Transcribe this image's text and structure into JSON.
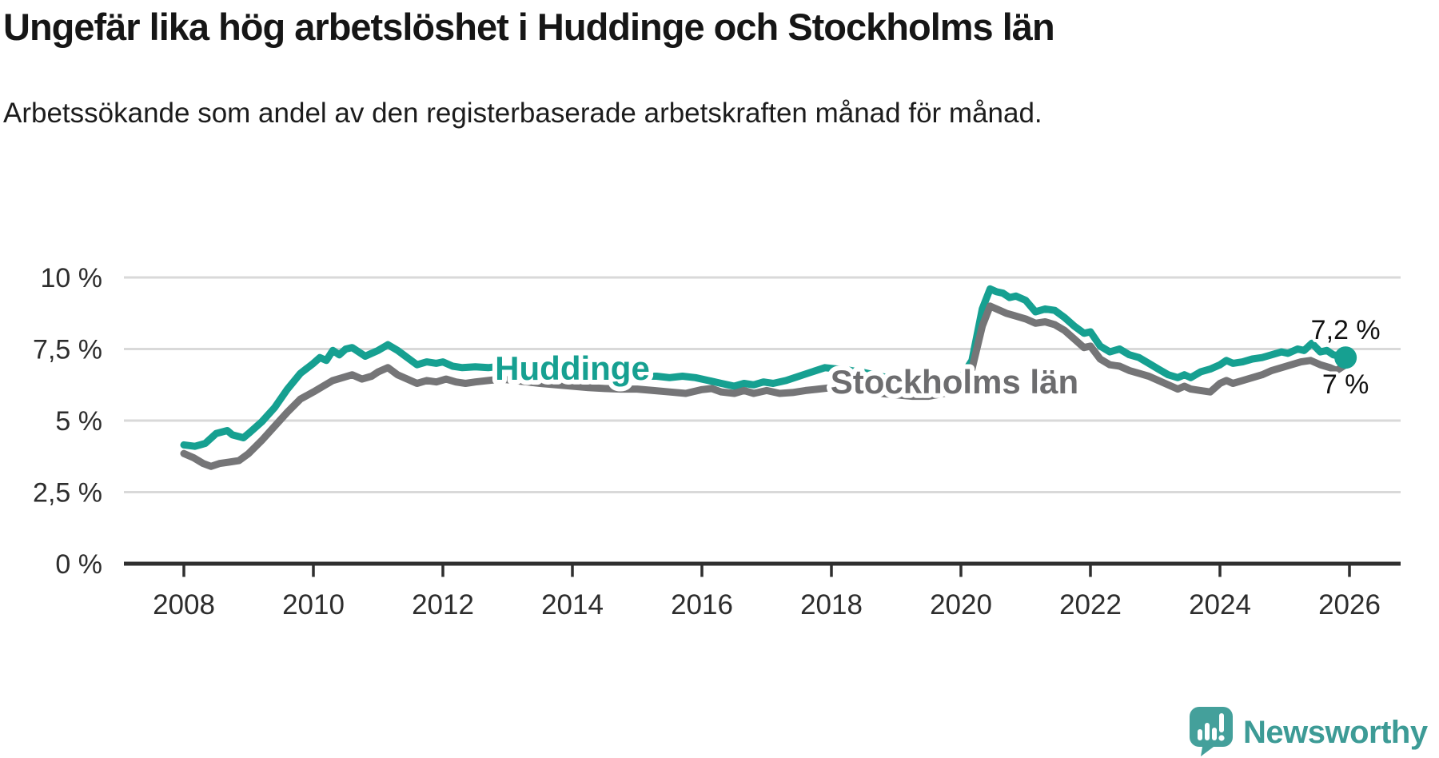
{
  "header": {
    "title": "Ungefär lika hög arbetslöshet i Huddinge och Stockholms län",
    "subtitle": "Arbetssökande som andel av den registerbaserade arbetskraften månad för månad."
  },
  "colors": {
    "huddinge": "#16a091",
    "stockholm": "#757577",
    "stockholm_label": "#6d6d6f",
    "grid": "#d9d9d9",
    "axis": "#2f2f2f",
    "tick_text": "#2d2d2d",
    "end_label_text": "#111111",
    "brand": "#3d9b96",
    "background": "#ffffff"
  },
  "chart_data": {
    "type": "line",
    "title": "Ungefär lika hög arbetslöshet i Huddinge och Stockholms län",
    "subtitle": "Arbetssökande som andel av den registerbaserade arbetskraften månad för månad.",
    "xlabel": "",
    "ylabel": "",
    "ylim": [
      0,
      10
    ],
    "xlim": [
      2007.1,
      2026.8
    ],
    "grid": "horizontal",
    "legend_position": "inline-labels",
    "yticks": [
      {
        "value": 0,
        "label": "0 %"
      },
      {
        "value": 2.5,
        "label": "2,5 %"
      },
      {
        "value": 5,
        "label": "5 %"
      },
      {
        "value": 7.5,
        "label": "7,5 %"
      },
      {
        "value": 10,
        "label": "10 %"
      }
    ],
    "xticks": [
      {
        "value": 2008,
        "label": "2008"
      },
      {
        "value": 2010,
        "label": "2010"
      },
      {
        "value": 2012,
        "label": "2012"
      },
      {
        "value": 2014,
        "label": "2014"
      },
      {
        "value": 2016,
        "label": "2016"
      },
      {
        "value": 2018,
        "label": "2018"
      },
      {
        "value": 2020,
        "label": "2020"
      },
      {
        "value": 2022,
        "label": "2022"
      },
      {
        "value": 2024,
        "label": "2024"
      },
      {
        "value": 2026,
        "label": "2026"
      }
    ],
    "series": [
      {
        "name": "Huddinge",
        "color_key": "huddinge",
        "end_label": "7,2 %",
        "end_dot": true,
        "points": [
          [
            2008.0,
            4.15
          ],
          [
            2008.17,
            4.1
          ],
          [
            2008.33,
            4.2
          ],
          [
            2008.5,
            4.55
          ],
          [
            2008.67,
            4.65
          ],
          [
            2008.75,
            4.5
          ],
          [
            2008.92,
            4.4
          ],
          [
            2009.0,
            4.55
          ],
          [
            2009.2,
            4.95
          ],
          [
            2009.4,
            5.45
          ],
          [
            2009.6,
            6.1
          ],
          [
            2009.8,
            6.65
          ],
          [
            2010.0,
            7.0
          ],
          [
            2010.1,
            7.2
          ],
          [
            2010.2,
            7.1
          ],
          [
            2010.3,
            7.45
          ],
          [
            2010.4,
            7.3
          ],
          [
            2010.5,
            7.5
          ],
          [
            2010.6,
            7.55
          ],
          [
            2010.7,
            7.4
          ],
          [
            2010.8,
            7.25
          ],
          [
            2010.9,
            7.35
          ],
          [
            2011.0,
            7.45
          ],
          [
            2011.15,
            7.65
          ],
          [
            2011.3,
            7.45
          ],
          [
            2011.45,
            7.2
          ],
          [
            2011.6,
            6.95
          ],
          [
            2011.75,
            7.05
          ],
          [
            2011.9,
            7.0
          ],
          [
            2012.0,
            7.05
          ],
          [
            2012.15,
            6.9
          ],
          [
            2012.3,
            6.85
          ],
          [
            2012.5,
            6.88
          ],
          [
            2012.7,
            6.85
          ],
          [
            2012.9,
            6.9
          ],
          [
            2013.1,
            6.85
          ],
          [
            2013.3,
            6.78
          ],
          [
            2013.5,
            6.72
          ],
          [
            2013.75,
            6.68
          ],
          [
            2014.0,
            6.65
          ],
          [
            2014.25,
            6.6
          ],
          [
            2014.5,
            6.58
          ],
          [
            2014.75,
            6.55
          ],
          [
            2015.0,
            6.55
          ],
          [
            2015.3,
            6.55
          ],
          [
            2015.5,
            6.5
          ],
          [
            2015.7,
            6.55
          ],
          [
            2015.9,
            6.5
          ],
          [
            2016.1,
            6.4
          ],
          [
            2016.3,
            6.3
          ],
          [
            2016.5,
            6.2
          ],
          [
            2016.65,
            6.3
          ],
          [
            2016.8,
            6.25
          ],
          [
            2016.95,
            6.35
          ],
          [
            2017.1,
            6.3
          ],
          [
            2017.3,
            6.4
          ],
          [
            2017.5,
            6.55
          ],
          [
            2017.7,
            6.7
          ],
          [
            2017.9,
            6.85
          ],
          [
            2018.1,
            6.8
          ],
          [
            2018.3,
            6.75
          ],
          [
            2018.5,
            6.68
          ],
          [
            2018.75,
            6.55
          ],
          [
            2019.0,
            6.45
          ],
          [
            2019.25,
            6.35
          ],
          [
            2019.5,
            6.28
          ],
          [
            2019.75,
            6.38
          ],
          [
            2020.0,
            6.5
          ],
          [
            2020.17,
            7.1
          ],
          [
            2020.33,
            8.9
          ],
          [
            2020.45,
            9.6
          ],
          [
            2020.55,
            9.5
          ],
          [
            2020.65,
            9.45
          ],
          [
            2020.75,
            9.3
          ],
          [
            2020.85,
            9.35
          ],
          [
            2021.0,
            9.2
          ],
          [
            2021.15,
            8.8
          ],
          [
            2021.3,
            8.9
          ],
          [
            2021.45,
            8.85
          ],
          [
            2021.6,
            8.6
          ],
          [
            2021.75,
            8.3
          ],
          [
            2021.9,
            8.05
          ],
          [
            2022.0,
            8.1
          ],
          [
            2022.15,
            7.6
          ],
          [
            2022.3,
            7.4
          ],
          [
            2022.45,
            7.5
          ],
          [
            2022.6,
            7.3
          ],
          [
            2022.75,
            7.2
          ],
          [
            2022.9,
            7.0
          ],
          [
            2023.05,
            6.8
          ],
          [
            2023.2,
            6.6
          ],
          [
            2023.35,
            6.5
          ],
          [
            2023.45,
            6.6
          ],
          [
            2023.55,
            6.5
          ],
          [
            2023.7,
            6.7
          ],
          [
            2023.85,
            6.8
          ],
          [
            2024.0,
            6.95
          ],
          [
            2024.1,
            7.1
          ],
          [
            2024.2,
            7.0
          ],
          [
            2024.35,
            7.05
          ],
          [
            2024.5,
            7.15
          ],
          [
            2024.65,
            7.2
          ],
          [
            2024.8,
            7.3
          ],
          [
            2024.95,
            7.4
          ],
          [
            2025.05,
            7.35
          ],
          [
            2025.2,
            7.5
          ],
          [
            2025.3,
            7.45
          ],
          [
            2025.42,
            7.7
          ],
          [
            2025.55,
            7.4
          ],
          [
            2025.65,
            7.45
          ],
          [
            2025.75,
            7.3
          ],
          [
            2025.85,
            7.25
          ],
          [
            2025.94,
            7.2
          ]
        ]
      },
      {
        "name": "Stockholms län",
        "color_key": "stockholm",
        "end_label": "7 %",
        "end_dot": false,
        "points": [
          [
            2008.0,
            3.85
          ],
          [
            2008.15,
            3.7
          ],
          [
            2008.3,
            3.5
          ],
          [
            2008.42,
            3.4
          ],
          [
            2008.55,
            3.5
          ],
          [
            2008.7,
            3.55
          ],
          [
            2008.85,
            3.6
          ],
          [
            2009.0,
            3.85
          ],
          [
            2009.2,
            4.3
          ],
          [
            2009.4,
            4.8
          ],
          [
            2009.6,
            5.3
          ],
          [
            2009.8,
            5.75
          ],
          [
            2010.0,
            6.0
          ],
          [
            2010.15,
            6.2
          ],
          [
            2010.3,
            6.4
          ],
          [
            2010.45,
            6.5
          ],
          [
            2010.6,
            6.6
          ],
          [
            2010.75,
            6.45
          ],
          [
            2010.9,
            6.55
          ],
          [
            2011.0,
            6.7
          ],
          [
            2011.15,
            6.85
          ],
          [
            2011.3,
            6.6
          ],
          [
            2011.45,
            6.45
          ],
          [
            2011.6,
            6.3
          ],
          [
            2011.75,
            6.4
          ],
          [
            2011.9,
            6.35
          ],
          [
            2012.05,
            6.45
          ],
          [
            2012.2,
            6.35
          ],
          [
            2012.35,
            6.3
          ],
          [
            2012.5,
            6.35
          ],
          [
            2012.7,
            6.4
          ],
          [
            2012.9,
            6.45
          ],
          [
            2013.1,
            6.4
          ],
          [
            2013.3,
            6.35
          ],
          [
            2013.5,
            6.3
          ],
          [
            2013.75,
            6.25
          ],
          [
            2014.0,
            6.2
          ],
          [
            2014.25,
            6.15
          ],
          [
            2014.5,
            6.12
          ],
          [
            2014.75,
            6.1
          ],
          [
            2015.0,
            6.1
          ],
          [
            2015.25,
            6.05
          ],
          [
            2015.5,
            6.0
          ],
          [
            2015.75,
            5.95
          ],
          [
            2016.0,
            6.08
          ],
          [
            2016.15,
            6.12
          ],
          [
            2016.3,
            6.0
          ],
          [
            2016.5,
            5.95
          ],
          [
            2016.65,
            6.05
          ],
          [
            2016.8,
            5.95
          ],
          [
            2017.0,
            6.05
          ],
          [
            2017.2,
            5.95
          ],
          [
            2017.4,
            5.98
          ],
          [
            2017.6,
            6.05
          ],
          [
            2017.8,
            6.1
          ],
          [
            2018.0,
            6.15
          ],
          [
            2018.25,
            6.1
          ],
          [
            2018.5,
            6.05
          ],
          [
            2018.75,
            5.95
          ],
          [
            2019.0,
            5.9
          ],
          [
            2019.25,
            5.85
          ],
          [
            2019.5,
            5.85
          ],
          [
            2019.75,
            5.95
          ],
          [
            2020.0,
            6.1
          ],
          [
            2020.17,
            6.8
          ],
          [
            2020.33,
            8.3
          ],
          [
            2020.45,
            9.0
          ],
          [
            2020.55,
            8.9
          ],
          [
            2020.7,
            8.75
          ],
          [
            2020.85,
            8.65
          ],
          [
            2021.0,
            8.55
          ],
          [
            2021.15,
            8.4
          ],
          [
            2021.3,
            8.45
          ],
          [
            2021.45,
            8.35
          ],
          [
            2021.6,
            8.15
          ],
          [
            2021.75,
            7.85
          ],
          [
            2021.9,
            7.55
          ],
          [
            2022.0,
            7.6
          ],
          [
            2022.15,
            7.15
          ],
          [
            2022.3,
            6.95
          ],
          [
            2022.45,
            6.9
          ],
          [
            2022.6,
            6.75
          ],
          [
            2022.75,
            6.65
          ],
          [
            2022.9,
            6.55
          ],
          [
            2023.05,
            6.4
          ],
          [
            2023.2,
            6.25
          ],
          [
            2023.35,
            6.1
          ],
          [
            2023.45,
            6.2
          ],
          [
            2023.55,
            6.1
          ],
          [
            2023.7,
            6.05
          ],
          [
            2023.85,
            6.0
          ],
          [
            2024.0,
            6.3
          ],
          [
            2024.1,
            6.4
          ],
          [
            2024.2,
            6.3
          ],
          [
            2024.35,
            6.4
          ],
          [
            2024.5,
            6.5
          ],
          [
            2024.65,
            6.6
          ],
          [
            2024.8,
            6.75
          ],
          [
            2024.95,
            6.85
          ],
          [
            2025.1,
            6.95
          ],
          [
            2025.25,
            7.05
          ],
          [
            2025.4,
            7.1
          ],
          [
            2025.55,
            6.95
          ],
          [
            2025.7,
            6.85
          ],
          [
            2025.8,
            6.75
          ],
          [
            2025.94,
            6.95
          ]
        ]
      }
    ],
    "annotations": [
      {
        "text": "Huddinge",
        "x": 2014.0,
        "y": 6.85,
        "color_key": "huddinge",
        "anchor": "middle"
      },
      {
        "text": "Stockholms län",
        "x": 2019.9,
        "y": 6.37,
        "color_key": "stockholm_label",
        "anchor": "middle"
      }
    ]
  },
  "footer": {
    "brand": "Newsworthy",
    "logo_icon": "speech-bubble-bar-chart"
  }
}
